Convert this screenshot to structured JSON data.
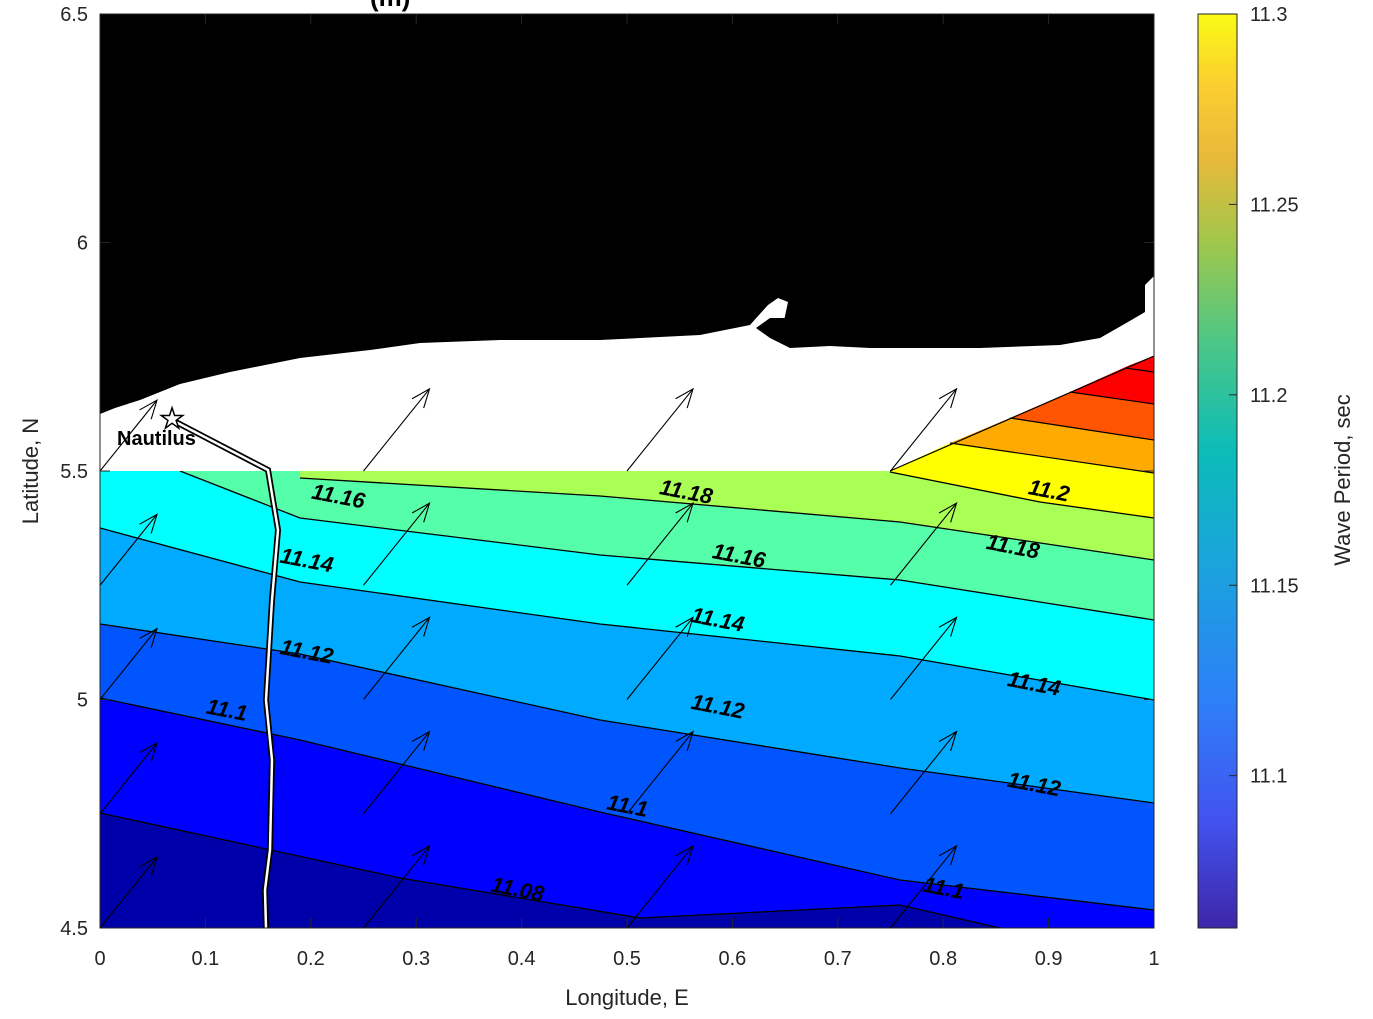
{
  "chart_data": {
    "type": "contour",
    "title": "(m)",
    "xlabel": "Longitude, E",
    "ylabel": "Latitude, N",
    "xlim": [
      0,
      1
    ],
    "ylim": [
      4.5,
      6.5
    ],
    "x_ticks": [
      "0",
      "0.1",
      "0.2",
      "0.3",
      "0.4",
      "0.5",
      "0.6",
      "0.7",
      "0.8",
      "0.9",
      "1"
    ],
    "y_ticks": [
      "4.5",
      "5",
      "5.5",
      "6",
      "6.5"
    ],
    "grid": false,
    "colorbar": {
      "label": "Wave Period, sec",
      "range": [
        11.06,
        11.3
      ],
      "ticks": [
        "11.1",
        "11.15",
        "11.2",
        "11.25",
        "11.3"
      ],
      "placement": "right"
    },
    "contour_levels": [
      11.08,
      11.1,
      11.12,
      11.14,
      11.16,
      11.18,
      11.2
    ],
    "contour_labels": [
      {
        "text": "11.16",
        "lon": 0.2,
        "lat": 5.44
      },
      {
        "text": "11.14",
        "lon": 0.17,
        "lat": 5.3
      },
      {
        "text": "11.12",
        "lon": 0.17,
        "lat": 5.1
      },
      {
        "text": "11.1",
        "lon": 0.1,
        "lat": 4.97
      },
      {
        "text": "11.08",
        "lon": 0.37,
        "lat": 4.58
      },
      {
        "text": "11.18",
        "lon": 0.53,
        "lat": 5.45
      },
      {
        "text": "11.16",
        "lon": 0.58,
        "lat": 5.31
      },
      {
        "text": "11.14",
        "lon": 0.56,
        "lat": 5.17
      },
      {
        "text": "11.12",
        "lon": 0.56,
        "lat": 4.98
      },
      {
        "text": "11.1",
        "lon": 0.48,
        "lat": 4.76
      },
      {
        "text": "11.2",
        "lon": 0.88,
        "lat": 5.45
      },
      {
        "text": "11.18",
        "lon": 0.84,
        "lat": 5.33
      },
      {
        "text": "11.14",
        "lon": 0.86,
        "lat": 5.03
      },
      {
        "text": "11.12",
        "lon": 0.86,
        "lat": 4.81
      },
      {
        "text": "11.1",
        "lon": 0.78,
        "lat": 4.58
      }
    ],
    "station": {
      "name": "Nautilus",
      "lon": 0.068,
      "lat": 5.61
    },
    "vector_arrows": {
      "grid_lon": [
        0,
        0.25,
        0.5,
        0.75
      ],
      "grid_lat": [
        4.5,
        4.75,
        5.0,
        5.25,
        5.5
      ],
      "direction": "northeast"
    },
    "colors": {
      "land": "#000000",
      "no_data": "#ffffff",
      "bands": [
        "#0000aa",
        "#0000ff",
        "#0055ff",
        "#00aaff",
        "#00ffff",
        "#55ffaa",
        "#aaff55",
        "#ffff00",
        "#ffaa00",
        "#ff5500",
        "#ff0000"
      ]
    }
  }
}
